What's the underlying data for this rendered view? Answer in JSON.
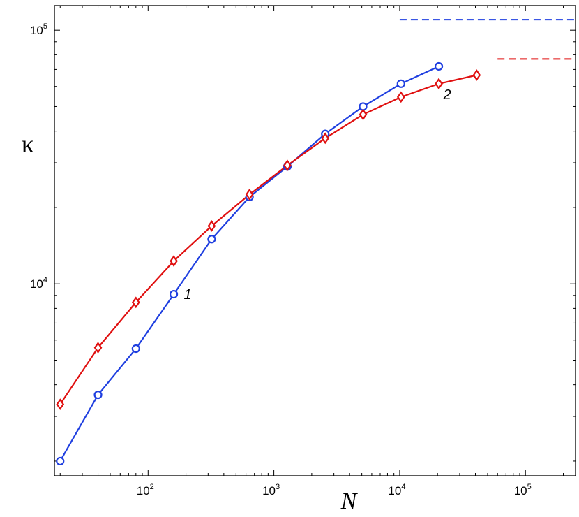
{
  "chart_data": {
    "type": "line",
    "xlabel": "N",
    "ylabel": "κ",
    "xscale": "log",
    "yscale": "log",
    "xlim": [
      18,
      250000
    ],
    "ylim": [
      1750,
      125000
    ],
    "grid": false,
    "legend": "none",
    "x_ticks": [
      {
        "value": 100,
        "base": "10",
        "exp": "2"
      },
      {
        "value": 1000,
        "base": "10",
        "exp": "3"
      },
      {
        "value": 10000,
        "base": "10",
        "exp": "4"
      },
      {
        "value": 100000,
        "base": "10",
        "exp": "5"
      }
    ],
    "y_ticks": [
      {
        "value": 10000,
        "base": "10",
        "exp": "4"
      },
      {
        "value": 100000,
        "base": "10",
        "exp": "5"
      }
    ],
    "series": [
      {
        "label": "1",
        "color": "#1f3fe0",
        "marker": "circle",
        "x": [
          20,
          40,
          80,
          160,
          320,
          640,
          1280,
          2560,
          5120,
          10240,
          20480
        ],
        "y": [
          2000,
          3650,
          5550,
          9100,
          15000,
          22000,
          29000,
          39000,
          50000,
          61500,
          72000
        ],
        "asymptote": {
          "y": 110000,
          "x_from": 10000
        }
      },
      {
        "label": "2",
        "color": "#e01010",
        "marker": "diamond",
        "x": [
          20,
          40,
          80,
          160,
          320,
          640,
          1280,
          2560,
          5120,
          10240,
          20480,
          40960
        ],
        "y": [
          3350,
          5600,
          8450,
          12300,
          16900,
          22500,
          29300,
          37500,
          46500,
          54500,
          61500,
          66500
        ],
        "asymptote": {
          "y": 77000,
          "x_from": 60000
        }
      }
    ]
  }
}
